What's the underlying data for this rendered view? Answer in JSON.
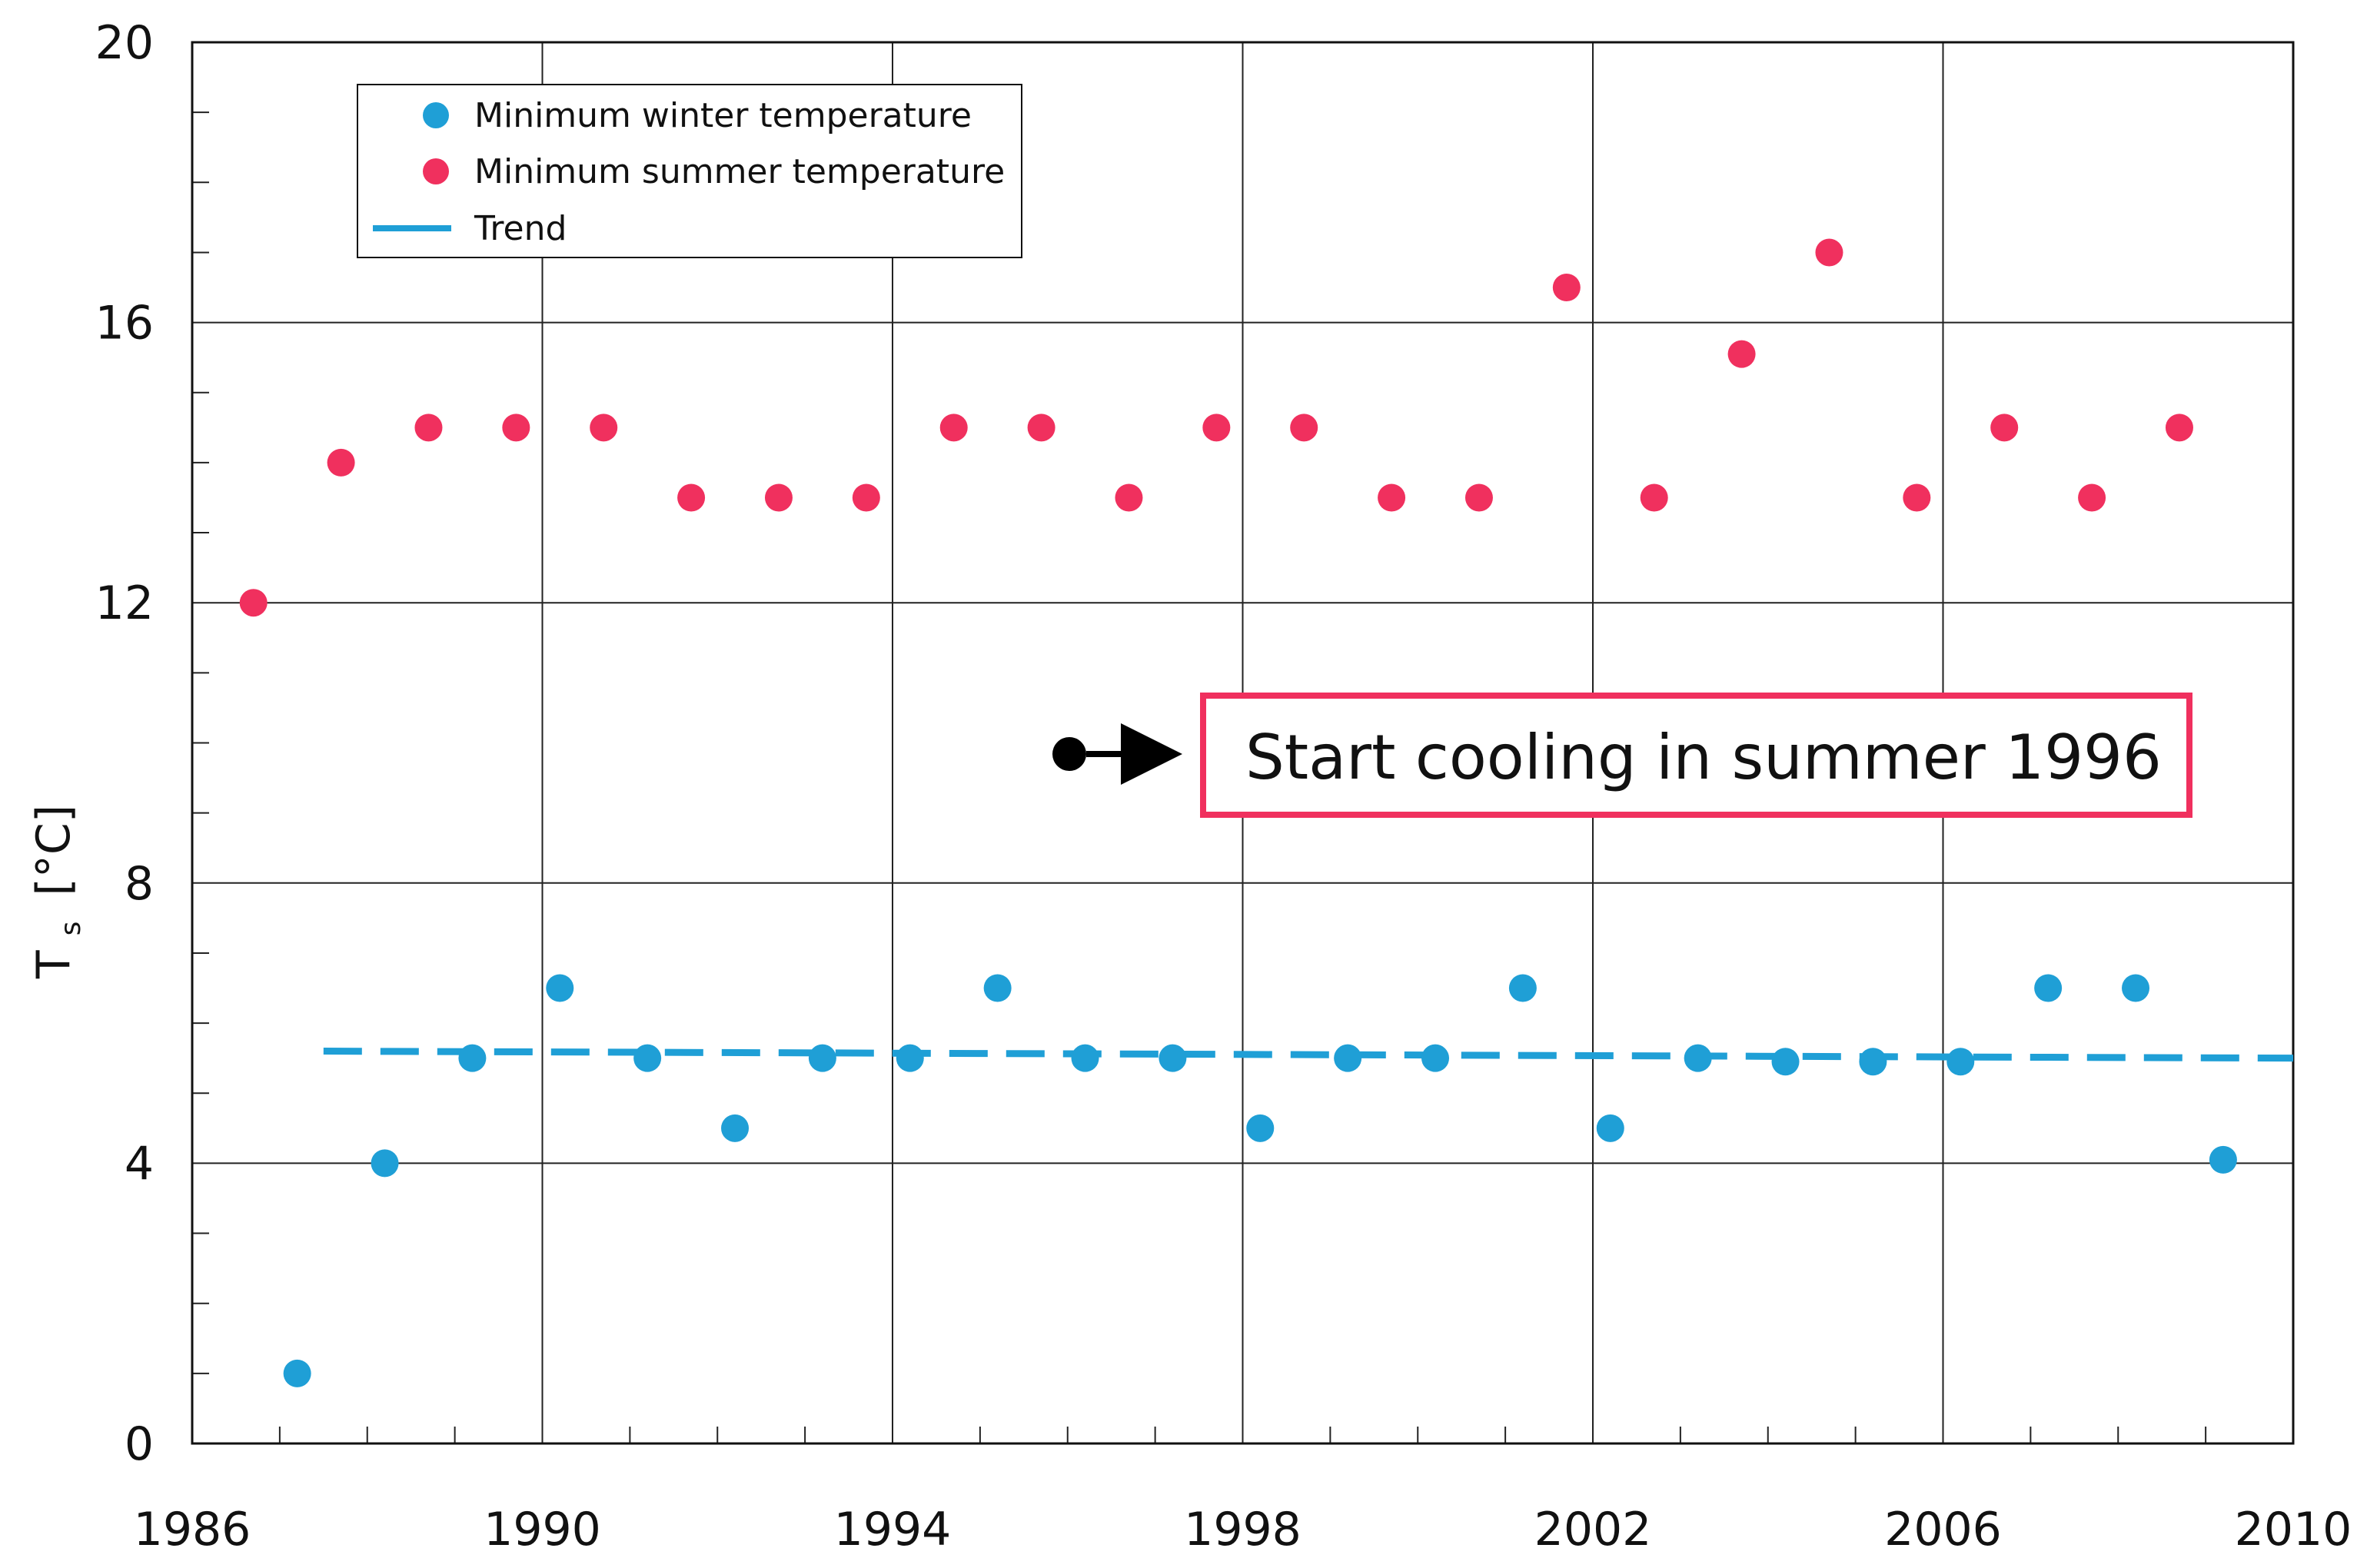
{
  "chart_data": {
    "type": "scatter",
    "title": "",
    "xlabel": "",
    "ylabel": "T",
    "ylabel_subscript": "s",
    "ylabel_unit": "[°C]",
    "xlim": [
      1986,
      2010
    ],
    "ylim": [
      0,
      20
    ],
    "xticks": [
      1986,
      1990,
      1994,
      1998,
      2002,
      2006,
      2010
    ],
    "yticks": [
      0,
      4,
      8,
      12,
      16,
      20
    ],
    "grid": true,
    "legend_position": "top-left",
    "colors": {
      "winter": "#1f9fd6",
      "summer": "#f0305e",
      "trend": "#1f9fd6",
      "annotation_box": "#f0305e",
      "annotation_marker": "#000000"
    },
    "series": [
      {
        "name": "Minimum winter temperature",
        "kind": "points",
        "x": [
          1987.2,
          1988.2,
          1989.2,
          1990.2,
          1991.2,
          1992.2,
          1993.2,
          1994.2,
          1995.2,
          1996.2,
          1997.2,
          1998.2,
          1999.2,
          2000.2,
          2001.2,
          2002.2,
          2003.2,
          2004.2,
          2005.2,
          2006.2,
          2007.2,
          2008.2,
          2009.2
        ],
        "y": [
          1.0,
          4.0,
          5.5,
          6.5,
          5.5,
          4.5,
          5.5,
          5.5,
          6.5,
          5.5,
          5.5,
          4.5,
          5.5,
          5.5,
          6.5,
          4.5,
          5.5,
          5.45,
          5.45,
          5.45,
          6.5,
          6.5,
          4.05
        ]
      },
      {
        "name": "Minimum summer temperature",
        "kind": "points",
        "x": [
          1986.7,
          1987.7,
          1988.7,
          1989.7,
          1990.7,
          1991.7,
          1992.7,
          1993.7,
          1994.7,
          1995.7,
          1996.7,
          1997.7,
          1998.7,
          1999.7,
          2000.7,
          2001.7,
          2002.7,
          2003.7,
          2004.7,
          2005.7,
          2006.7,
          2007.7,
          2008.7
        ],
        "y": [
          12.0,
          14.0,
          14.5,
          14.5,
          14.5,
          13.5,
          13.5,
          13.5,
          14.5,
          14.5,
          13.5,
          14.5,
          14.5,
          13.5,
          13.5,
          16.5,
          13.5,
          15.55,
          17.0,
          13.5,
          14.5,
          13.5,
          14.5
        ]
      },
      {
        "name": "Trend",
        "kind": "dashed-line",
        "x": [
          1987.5,
          2010
        ],
        "y": [
          5.6,
          5.5
        ]
      }
    ],
    "annotation": {
      "text": "Start cooling in summer 1996",
      "marker_x": 1996.0,
      "marker_y": 9.8
    }
  }
}
